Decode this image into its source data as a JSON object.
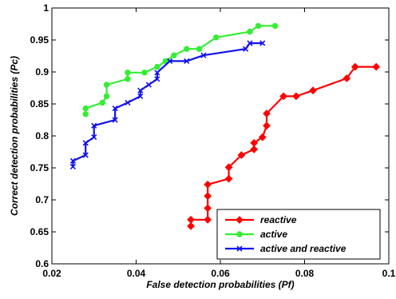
{
  "chart_data": {
    "type": "line",
    "title": "",
    "xlabel": "False detection probabilities (Pf)",
    "ylabel": "Correct detection probabilities (Pc)",
    "xlim": [
      0.02,
      0.1
    ],
    "ylim": [
      0.6,
      1.0
    ],
    "xticks": [
      {
        "value": 0.02,
        "label": "0.02"
      },
      {
        "value": 0.04,
        "label": "0.04"
      },
      {
        "value": 0.06,
        "label": "0.06"
      },
      {
        "value": 0.08,
        "label": "0.08"
      },
      {
        "value": 0.1,
        "label": "0.1"
      }
    ],
    "yticks": [
      {
        "value": 0.6,
        "label": "0.6"
      },
      {
        "value": 0.65,
        "label": "0.65"
      },
      {
        "value": 0.7,
        "label": "0.7"
      },
      {
        "value": 0.75,
        "label": "0.75"
      },
      {
        "value": 0.8,
        "label": "0.8"
      },
      {
        "value": 0.85,
        "label": "0.85"
      },
      {
        "value": 0.9,
        "label": "0.9"
      },
      {
        "value": 0.95,
        "label": "0.95"
      },
      {
        "value": 1.0,
        "label": "1"
      }
    ],
    "grid": false,
    "legend": "bottom-right",
    "series": [
      {
        "name": "reactive",
        "color": "#ff0000",
        "marker": "diamond",
        "points": [
          [
            0.053,
            0.659
          ],
          [
            0.053,
            0.669
          ],
          [
            0.057,
            0.669
          ],
          [
            0.057,
            0.687
          ],
          [
            0.057,
            0.706
          ],
          [
            0.057,
            0.724
          ],
          [
            0.062,
            0.733
          ],
          [
            0.062,
            0.751
          ],
          [
            0.065,
            0.77
          ],
          [
            0.068,
            0.779
          ],
          [
            0.068,
            0.789
          ],
          [
            0.07,
            0.798
          ],
          [
            0.071,
            0.816
          ],
          [
            0.071,
            0.835
          ],
          [
            0.075,
            0.862
          ],
          [
            0.078,
            0.862
          ],
          [
            0.082,
            0.871
          ],
          [
            0.09,
            0.89
          ],
          [
            0.092,
            0.908
          ],
          [
            0.097,
            0.908
          ]
        ]
      },
      {
        "name": "active",
        "color": "#33ee33",
        "marker": "circle",
        "points": [
          [
            0.028,
            0.834
          ],
          [
            0.028,
            0.843
          ],
          [
            0.032,
            0.852
          ],
          [
            0.033,
            0.862
          ],
          [
            0.033,
            0.88
          ],
          [
            0.038,
            0.889
          ],
          [
            0.038,
            0.899
          ],
          [
            0.042,
            0.899
          ],
          [
            0.045,
            0.908
          ],
          [
            0.047,
            0.917
          ],
          [
            0.049,
            0.926
          ],
          [
            0.052,
            0.936
          ],
          [
            0.055,
            0.936
          ],
          [
            0.059,
            0.954
          ],
          [
            0.067,
            0.963
          ],
          [
            0.069,
            0.972
          ],
          [
            0.073,
            0.972
          ]
        ]
      },
      {
        "name": "active and reactive",
        "color": "#1111ee",
        "marker": "x",
        "points": [
          [
            0.025,
            0.752
          ],
          [
            0.025,
            0.761
          ],
          [
            0.028,
            0.77
          ],
          [
            0.028,
            0.789
          ],
          [
            0.03,
            0.798
          ],
          [
            0.03,
            0.816
          ],
          [
            0.035,
            0.825
          ],
          [
            0.035,
            0.843
          ],
          [
            0.038,
            0.852
          ],
          [
            0.041,
            0.862
          ],
          [
            0.041,
            0.871
          ],
          [
            0.043,
            0.88
          ],
          [
            0.045,
            0.889
          ],
          [
            0.045,
            0.899
          ],
          [
            0.048,
            0.917
          ],
          [
            0.052,
            0.917
          ],
          [
            0.056,
            0.926
          ],
          [
            0.066,
            0.936
          ],
          [
            0.067,
            0.945
          ],
          [
            0.07,
            0.945
          ]
        ]
      }
    ]
  }
}
